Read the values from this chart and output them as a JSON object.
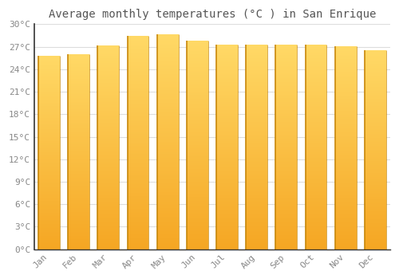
{
  "title": "Average monthly temperatures (°C ) in San Enrique",
  "months": [
    "Jan",
    "Feb",
    "Mar",
    "Apr",
    "May",
    "Jun",
    "Jul",
    "Aug",
    "Sep",
    "Oct",
    "Nov",
    "Dec"
  ],
  "temperatures": [
    25.8,
    26.0,
    27.2,
    28.5,
    28.7,
    27.8,
    27.3,
    27.3,
    27.3,
    27.3,
    27.1,
    26.5
  ],
  "ylim": [
    0,
    30
  ],
  "yticks": [
    0,
    3,
    6,
    9,
    12,
    15,
    18,
    21,
    24,
    27,
    30
  ],
  "ytick_labels": [
    "0°C",
    "3°C",
    "6°C",
    "9°C",
    "12°C",
    "15°C",
    "18°C",
    "21°C",
    "24°C",
    "27°C",
    "30°C"
  ],
  "background_color": "#FFFFFF",
  "grid_color": "#DDDDDD",
  "bar_color_bottom": "#F5A623",
  "bar_color_top": "#FFD966",
  "bar_edge_color": "#C8880A",
  "title_fontsize": 10,
  "tick_fontsize": 8,
  "font_color": "#888888",
  "bar_width": 0.72,
  "n_grad": 200
}
